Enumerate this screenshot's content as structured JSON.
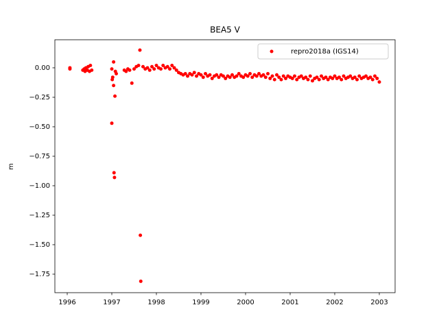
{
  "chart_data": {
    "type": "scatter",
    "title": "BEA5 V",
    "ylabel": "m",
    "xlim": [
      1995.723,
      2003.354
    ],
    "ylim": [
      -1.907,
      0.238
    ],
    "xticks": [
      1996,
      1997,
      1998,
      1999,
      2000,
      2001,
      2002,
      2003
    ],
    "yticks": [
      {
        "value": 0,
        "label": "0.00"
      },
      {
        "value": -0.25,
        "label": "−0.25"
      },
      {
        "value": -0.5,
        "label": "−0.50"
      },
      {
        "value": -0.75,
        "label": "−0.75"
      },
      {
        "value": -1,
        "label": "−1.00"
      },
      {
        "value": -1.25,
        "label": "−1.25"
      },
      {
        "value": -1.5,
        "label": "−1.50"
      },
      {
        "value": -1.75,
        "label": "−1.75"
      }
    ],
    "grid": false,
    "legend": "upper right",
    "x": [
      1996.06,
      1996.06,
      1996.35,
      1996.38,
      1996.4,
      1996.42,
      1996.45,
      1996.47,
      1996.5,
      1996.52,
      1996.55,
      1997.0,
      1997.0,
      1997.01,
      1997.02,
      1997.04,
      1997.04,
      1997.05,
      1997.06,
      1997.07,
      1997.08,
      1997.1,
      1997.28,
      1997.32,
      1997.36,
      1997.4,
      1997.45,
      1997.5,
      1997.55,
      1997.6,
      1997.63,
      1997.64,
      1997.65,
      1997.7,
      1997.75,
      1997.8,
      1997.85,
      1997.9,
      1997.95,
      1998.0,
      1998.05,
      1998.1,
      1998.15,
      1998.2,
      1998.25,
      1998.3,
      1998.35,
      1998.4,
      1998.45,
      1998.5,
      1998.55,
      1998.6,
      1998.65,
      1998.7,
      1998.75,
      1998.8,
      1998.85,
      1998.9,
      1998.95,
      1999.0,
      1999.05,
      1999.1,
      1999.15,
      1999.2,
      1999.25,
      1999.3,
      1999.35,
      1999.4,
      1999.45,
      1999.5,
      1999.55,
      1999.6,
      1999.65,
      1999.7,
      1999.75,
      1999.8,
      1999.85,
      1999.9,
      1999.95,
      2000.0,
      2000.05,
      2000.1,
      2000.15,
      2000.2,
      2000.25,
      2000.3,
      2000.35,
      2000.4,
      2000.45,
      2000.5,
      2000.55,
      2000.6,
      2000.65,
      2000.7,
      2000.75,
      2000.8,
      2000.85,
      2000.9,
      2000.95,
      2001.0,
      2001.05,
      2001.1,
      2001.15,
      2001.2,
      2001.25,
      2001.3,
      2001.35,
      2001.4,
      2001.45,
      2001.5,
      2001.55,
      2001.6,
      2001.65,
      2001.7,
      2001.75,
      2001.8,
      2001.85,
      2001.9,
      2001.95,
      2002.0,
      2002.05,
      2002.1,
      2002.15,
      2002.2,
      2002.25,
      2002.3,
      2002.35,
      2002.4,
      2002.45,
      2002.5,
      2002.55,
      2002.6,
      2002.65,
      2002.7,
      2002.75,
      2002.8,
      2002.85,
      2002.9,
      2002.95,
      2003.0
    ],
    "series": [
      {
        "name": "repro2018a (IGS14)",
        "color": "#ff0000",
        "values": [
          0.0,
          -0.01,
          -0.02,
          -0.01,
          -0.03,
          0.0,
          -0.02,
          0.01,
          -0.03,
          0.02,
          -0.02,
          -0.47,
          -0.01,
          -0.1,
          -0.08,
          0.05,
          -0.15,
          -0.89,
          -0.93,
          -0.24,
          -0.03,
          -0.05,
          -0.02,
          -0.03,
          -0.01,
          -0.02,
          -0.13,
          -0.01,
          0.01,
          0.02,
          0.15,
          -1.42,
          -1.81,
          0.01,
          -0.01,
          0.0,
          -0.02,
          0.01,
          -0.01,
          0.02,
          0.0,
          -0.01,
          0.02,
          0.0,
          0.01,
          -0.01,
          0.02,
          0.0,
          -0.02,
          -0.04,
          -0.05,
          -0.06,
          -0.05,
          -0.07,
          -0.05,
          -0.06,
          -0.04,
          -0.07,
          -0.05,
          -0.06,
          -0.08,
          -0.05,
          -0.07,
          -0.06,
          -0.09,
          -0.07,
          -0.06,
          -0.08,
          -0.06,
          -0.07,
          -0.09,
          -0.07,
          -0.08,
          -0.06,
          -0.08,
          -0.07,
          -0.05,
          -0.07,
          -0.08,
          -0.06,
          -0.07,
          -0.05,
          -0.08,
          -0.06,
          -0.07,
          -0.05,
          -0.07,
          -0.06,
          -0.08,
          -0.05,
          -0.09,
          -0.07,
          -0.1,
          -0.06,
          -0.08,
          -0.1,
          -0.07,
          -0.09,
          -0.07,
          -0.08,
          -0.09,
          -0.07,
          -0.1,
          -0.08,
          -0.07,
          -0.09,
          -0.08,
          -0.1,
          -0.07,
          -0.11,
          -0.09,
          -0.08,
          -0.1,
          -0.07,
          -0.09,
          -0.08,
          -0.1,
          -0.08,
          -0.09,
          -0.07,
          -0.09,
          -0.08,
          -0.1,
          -0.07,
          -0.09,
          -0.08,
          -0.07,
          -0.09,
          -0.08,
          -0.1,
          -0.07,
          -0.09,
          -0.08,
          -0.07,
          -0.09,
          -0.08,
          -0.1,
          -0.07,
          -0.09,
          -0.12
        ]
      }
    ]
  }
}
